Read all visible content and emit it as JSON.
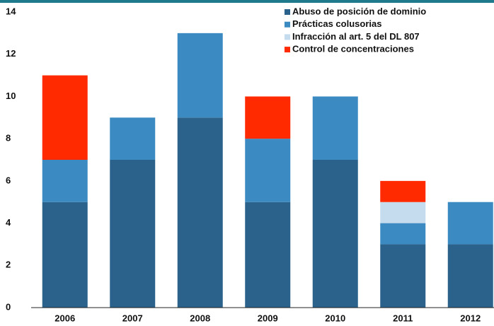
{
  "chart_data": {
    "type": "stacked_bar",
    "categories": [
      "2006",
      "2007",
      "2008",
      "2009",
      "2010",
      "2011",
      "2012"
    ],
    "series": [
      {
        "name": "Abuso de posición de dominio",
        "color": "#2a628c",
        "values": [
          5,
          7,
          9,
          5,
          7,
          3,
          3
        ]
      },
      {
        "name": "Prácticas colusorias",
        "color": "#3b8bc2",
        "values": [
          2,
          2,
          4,
          3,
          3,
          1,
          2
        ]
      },
      {
        "name": "Infracción al art. 5 del DL 807",
        "color": "#c5dcee",
        "values": [
          0,
          0,
          0,
          0,
          0,
          1,
          0
        ]
      },
      {
        "name": "Control de concentraciones",
        "color": "#ff2a00",
        "values": [
          4,
          0,
          0,
          2,
          0,
          1,
          0
        ]
      }
    ],
    "ylim": [
      0,
      14
    ],
    "yticks": [
      0,
      2,
      4,
      6,
      8,
      10,
      12,
      14
    ],
    "grid": false,
    "legend": "top-right"
  }
}
